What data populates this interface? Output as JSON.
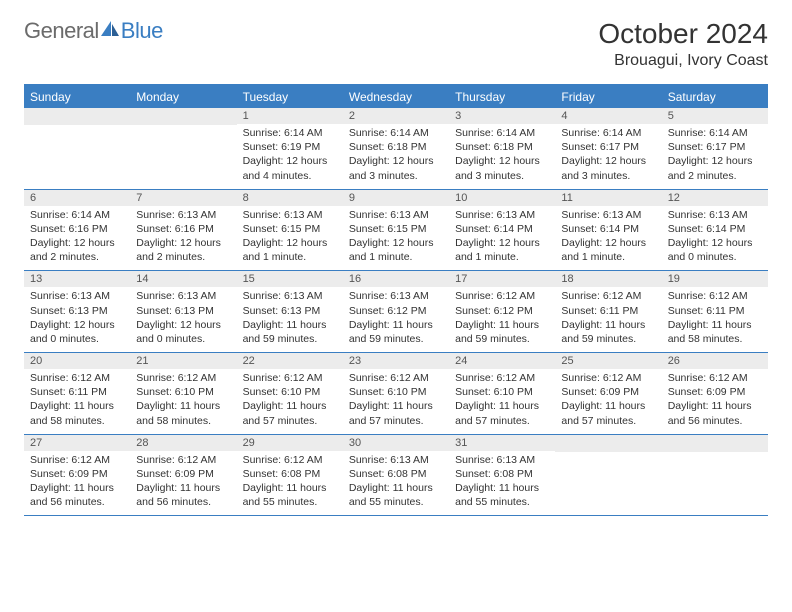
{
  "brand": {
    "part1": "General",
    "part2": "Blue"
  },
  "title": "October 2024",
  "location": "Brouagui, Ivory Coast",
  "colors": {
    "accent": "#3a7ec2",
    "header_bg": "#3a7ec2",
    "daynum_bg": "#ececec",
    "text": "#333333",
    "logo_gray": "#6b6b6b"
  },
  "weekdays": [
    "Sunday",
    "Monday",
    "Tuesday",
    "Wednesday",
    "Thursday",
    "Friday",
    "Saturday"
  ],
  "weeks": [
    [
      null,
      null,
      {
        "n": "1",
        "sunrise": "6:14 AM",
        "sunset": "6:19 PM",
        "daylight": "12 hours and 4 minutes."
      },
      {
        "n": "2",
        "sunrise": "6:14 AM",
        "sunset": "6:18 PM",
        "daylight": "12 hours and 3 minutes."
      },
      {
        "n": "3",
        "sunrise": "6:14 AM",
        "sunset": "6:18 PM",
        "daylight": "12 hours and 3 minutes."
      },
      {
        "n": "4",
        "sunrise": "6:14 AM",
        "sunset": "6:17 PM",
        "daylight": "12 hours and 3 minutes."
      },
      {
        "n": "5",
        "sunrise": "6:14 AM",
        "sunset": "6:17 PM",
        "daylight": "12 hours and 2 minutes."
      }
    ],
    [
      {
        "n": "6",
        "sunrise": "6:14 AM",
        "sunset": "6:16 PM",
        "daylight": "12 hours and 2 minutes."
      },
      {
        "n": "7",
        "sunrise": "6:13 AM",
        "sunset": "6:16 PM",
        "daylight": "12 hours and 2 minutes."
      },
      {
        "n": "8",
        "sunrise": "6:13 AM",
        "sunset": "6:15 PM",
        "daylight": "12 hours and 1 minute."
      },
      {
        "n": "9",
        "sunrise": "6:13 AM",
        "sunset": "6:15 PM",
        "daylight": "12 hours and 1 minute."
      },
      {
        "n": "10",
        "sunrise": "6:13 AM",
        "sunset": "6:14 PM",
        "daylight": "12 hours and 1 minute."
      },
      {
        "n": "11",
        "sunrise": "6:13 AM",
        "sunset": "6:14 PM",
        "daylight": "12 hours and 1 minute."
      },
      {
        "n": "12",
        "sunrise": "6:13 AM",
        "sunset": "6:14 PM",
        "daylight": "12 hours and 0 minutes."
      }
    ],
    [
      {
        "n": "13",
        "sunrise": "6:13 AM",
        "sunset": "6:13 PM",
        "daylight": "12 hours and 0 minutes."
      },
      {
        "n": "14",
        "sunrise": "6:13 AM",
        "sunset": "6:13 PM",
        "daylight": "12 hours and 0 minutes."
      },
      {
        "n": "15",
        "sunrise": "6:13 AM",
        "sunset": "6:13 PM",
        "daylight": "11 hours and 59 minutes."
      },
      {
        "n": "16",
        "sunrise": "6:13 AM",
        "sunset": "6:12 PM",
        "daylight": "11 hours and 59 minutes."
      },
      {
        "n": "17",
        "sunrise": "6:12 AM",
        "sunset": "6:12 PM",
        "daylight": "11 hours and 59 minutes."
      },
      {
        "n": "18",
        "sunrise": "6:12 AM",
        "sunset": "6:11 PM",
        "daylight": "11 hours and 59 minutes."
      },
      {
        "n": "19",
        "sunrise": "6:12 AM",
        "sunset": "6:11 PM",
        "daylight": "11 hours and 58 minutes."
      }
    ],
    [
      {
        "n": "20",
        "sunrise": "6:12 AM",
        "sunset": "6:11 PM",
        "daylight": "11 hours and 58 minutes."
      },
      {
        "n": "21",
        "sunrise": "6:12 AM",
        "sunset": "6:10 PM",
        "daylight": "11 hours and 58 minutes."
      },
      {
        "n": "22",
        "sunrise": "6:12 AM",
        "sunset": "6:10 PM",
        "daylight": "11 hours and 57 minutes."
      },
      {
        "n": "23",
        "sunrise": "6:12 AM",
        "sunset": "6:10 PM",
        "daylight": "11 hours and 57 minutes."
      },
      {
        "n": "24",
        "sunrise": "6:12 AM",
        "sunset": "6:10 PM",
        "daylight": "11 hours and 57 minutes."
      },
      {
        "n": "25",
        "sunrise": "6:12 AM",
        "sunset": "6:09 PM",
        "daylight": "11 hours and 57 minutes."
      },
      {
        "n": "26",
        "sunrise": "6:12 AM",
        "sunset": "6:09 PM",
        "daylight": "11 hours and 56 minutes."
      }
    ],
    [
      {
        "n": "27",
        "sunrise": "6:12 AM",
        "sunset": "6:09 PM",
        "daylight": "11 hours and 56 minutes."
      },
      {
        "n": "28",
        "sunrise": "6:12 AM",
        "sunset": "6:09 PM",
        "daylight": "11 hours and 56 minutes."
      },
      {
        "n": "29",
        "sunrise": "6:12 AM",
        "sunset": "6:08 PM",
        "daylight": "11 hours and 55 minutes."
      },
      {
        "n": "30",
        "sunrise": "6:13 AM",
        "sunset": "6:08 PM",
        "daylight": "11 hours and 55 minutes."
      },
      {
        "n": "31",
        "sunrise": "6:13 AM",
        "sunset": "6:08 PM",
        "daylight": "11 hours and 55 minutes."
      },
      null,
      null
    ]
  ],
  "labels": {
    "sunrise": "Sunrise:",
    "sunset": "Sunset:",
    "daylight": "Daylight:"
  }
}
